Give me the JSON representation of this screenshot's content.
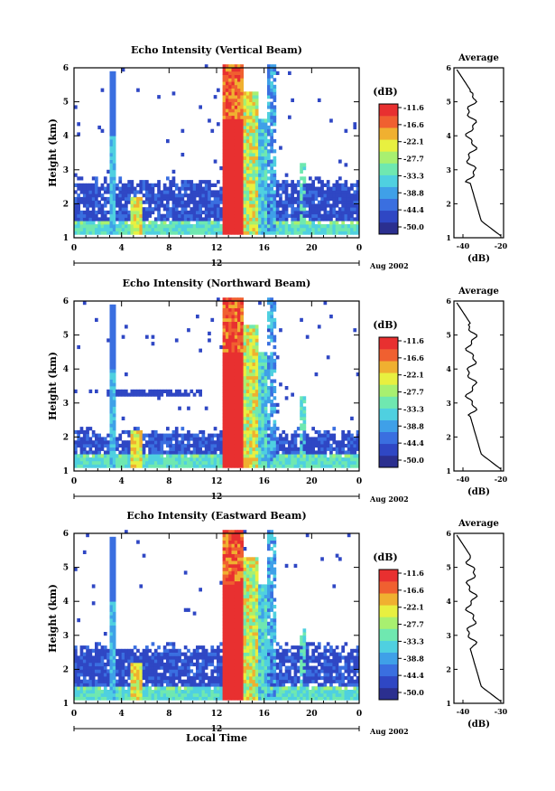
{
  "chart_data": [
    {
      "type": "heatmap",
      "title": "Echo Intensity (Vertical Beam)",
      "ylabel": "Height (km)",
      "x_ticks": [
        "0",
        "4",
        "8",
        "12",
        "16",
        "20",
        "0"
      ],
      "y_ticks": [
        "1",
        "2",
        "3",
        "4",
        "5",
        "6"
      ],
      "date_axis": {
        "mid_label": "12",
        "suffix": "Aug 2002"
      },
      "xlim": [
        0,
        24
      ],
      "ylim": [
        1,
        6
      ],
      "colorbar": {
        "label": "(dB)",
        "ticks": [
          "-11.6",
          "-16.6",
          "-22.1",
          "-27.7",
          "-33.3",
          "-38.8",
          "-44.4",
          "-50.0"
        ]
      },
      "profile": {
        "title": "Average",
        "xlabel": "(dB)",
        "x_ticks": [
          "-40",
          "-20"
        ],
        "y_ticks": [
          "1",
          "2",
          "3",
          "4",
          "5",
          "6"
        ]
      }
    },
    {
      "type": "heatmap",
      "title": "Echo Intensity (Northward Beam)",
      "ylabel": "Height (km)",
      "x_ticks": [
        "0",
        "4",
        "8",
        "12",
        "16",
        "20",
        "0"
      ],
      "y_ticks": [
        "1",
        "2",
        "3",
        "4",
        "5",
        "6"
      ],
      "date_axis": {
        "mid_label": "12",
        "suffix": "Aug 2002"
      },
      "xlim": [
        0,
        24
      ],
      "ylim": [
        1,
        6
      ],
      "colorbar": {
        "label": "(dB)",
        "ticks": [
          "-11.6",
          "-16.6",
          "-22.1",
          "-27.7",
          "-33.3",
          "-38.8",
          "-44.4",
          "-50.0"
        ]
      },
      "profile": {
        "title": "Average",
        "xlabel": "(dB)",
        "x_ticks": [
          "-40",
          "-20"
        ],
        "y_ticks": [
          "1",
          "2",
          "3",
          "4",
          "5",
          "6"
        ]
      }
    },
    {
      "type": "heatmap",
      "title": "Echo Intensity (Eastward Beam)",
      "ylabel": "Height (km)",
      "xlabel": "Local Time",
      "x_ticks": [
        "0",
        "4",
        "8",
        "12",
        "16",
        "20",
        "0"
      ],
      "y_ticks": [
        "1",
        "2",
        "3",
        "4",
        "5",
        "6"
      ],
      "date_axis": {
        "mid_label": "12",
        "suffix": "Aug 2002"
      },
      "xlim": [
        0,
        24
      ],
      "ylim": [
        1,
        6
      ],
      "colorbar": {
        "label": "(dB)",
        "ticks": [
          "-11.6",
          "-16.6",
          "-22.1",
          "-27.7",
          "-33.3",
          "-38.8",
          "-44.4",
          "-50.0"
        ]
      },
      "profile": {
        "title": "Average",
        "xlabel": "(dB)",
        "x_ticks": [
          "-40",
          "-30"
        ],
        "y_ticks": [
          "1",
          "2",
          "3",
          "4",
          "5",
          "6"
        ]
      }
    }
  ],
  "colors": {
    "scale": [
      "#2b2f8f",
      "#2f47c4",
      "#3a6fe0",
      "#3fa0e8",
      "#4fd0e0",
      "#6fe8b0",
      "#a8f070",
      "#e8f040",
      "#f0b030",
      "#f06030",
      "#e83030"
    ]
  }
}
